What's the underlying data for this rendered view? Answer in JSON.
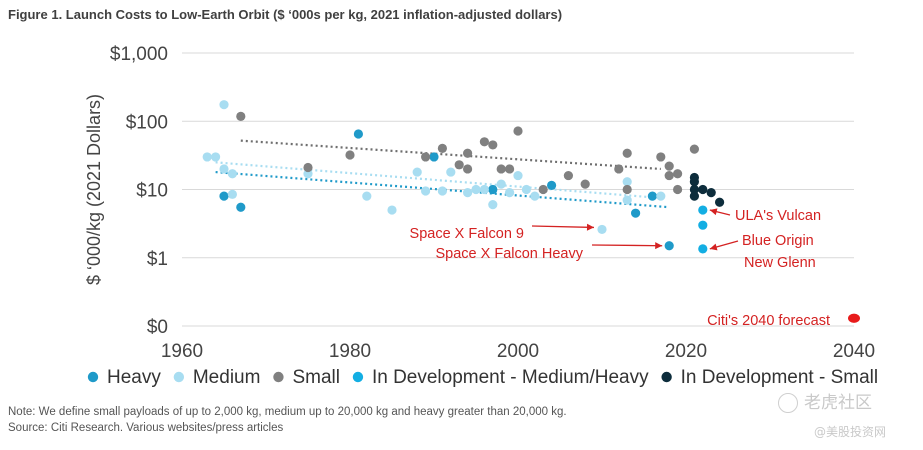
{
  "title": "Figure 1. Launch Costs to Low-Earth Orbit ($ ‘000s per kg, 2021 inflation-adjusted dollars)",
  "notes": {
    "line1": "Note: We define small payloads of up to 2,000 kg, medium up to 20,000 kg and heavy greater than 20,000 kg.",
    "line2": "Source: Citi Research. Various websites/press articles"
  },
  "watermark": {
    "line1": "老虎社区",
    "line2": "@美股投资网"
  },
  "chart_data": {
    "type": "scatter",
    "ylabel": "$ ‘000/kg (2021 Dollars)",
    "xlabel": "",
    "xlim": [
      1960,
      2040
    ],
    "ylim": [
      0.1,
      1000
    ],
    "yscale": "log",
    "x_ticks": [
      1960,
      1980,
      2000,
      2020,
      2040
    ],
    "y_ticks": [
      {
        "value": 1000,
        "label": "$1,000"
      },
      {
        "value": 100,
        "label": "$100"
      },
      {
        "value": 10,
        "label": "$10"
      },
      {
        "value": 1,
        "label": "$1"
      },
      {
        "value": 0.1,
        "label": "$0"
      }
    ],
    "grid": "horizontal",
    "legend_position": "bottom",
    "series": [
      {
        "name": "Heavy",
        "color": "#1f9ac9",
        "points": [
          [
            1965,
            8
          ],
          [
            1967,
            5.5
          ],
          [
            1981,
            65
          ],
          [
            1990,
            30
          ],
          [
            1997,
            10
          ],
          [
            2004,
            11.5
          ],
          [
            2014,
            4.5
          ],
          [
            2016,
            8
          ],
          [
            2018,
            1.5
          ]
        ]
      },
      {
        "name": "Medium",
        "color": "#a8ddf1",
        "points": [
          [
            1963,
            30
          ],
          [
            1964,
            30
          ],
          [
            1965,
            175
          ],
          [
            1965,
            20
          ],
          [
            1966,
            17
          ],
          [
            1966,
            8.5
          ],
          [
            1975,
            17
          ],
          [
            1982,
            8
          ],
          [
            1985,
            5
          ],
          [
            1988,
            18
          ],
          [
            1989,
            9.5
          ],
          [
            1991,
            9.5
          ],
          [
            1992,
            18
          ],
          [
            1994,
            9
          ],
          [
            1995,
            10
          ],
          [
            1996,
            10
          ],
          [
            1997,
            6
          ],
          [
            1998,
            12
          ],
          [
            1999,
            9
          ],
          [
            2000,
            16
          ],
          [
            2001,
            10
          ],
          [
            2002,
            8
          ],
          [
            2013,
            13
          ],
          [
            2013,
            7
          ],
          [
            2017,
            8
          ],
          [
            2010,
            2.6
          ]
        ]
      },
      {
        "name": "Small",
        "color": "#808080",
        "points": [
          [
            1967,
            118
          ],
          [
            1975,
            21
          ],
          [
            1980,
            32
          ],
          [
            1989,
            30
          ],
          [
            1991,
            40
          ],
          [
            1993,
            23
          ],
          [
            1994,
            34
          ],
          [
            1994,
            20
          ],
          [
            1996,
            50
          ],
          [
            1997,
            45
          ],
          [
            1998,
            20
          ],
          [
            1999,
            20
          ],
          [
            2000,
            72
          ],
          [
            2003,
            10
          ],
          [
            2006,
            16
          ],
          [
            2008,
            12
          ],
          [
            2012,
            20
          ],
          [
            2013,
            34
          ],
          [
            2013,
            10
          ],
          [
            2017,
            30
          ],
          [
            2018,
            22
          ],
          [
            2018,
            16
          ],
          [
            2019,
            17
          ],
          [
            2019,
            10
          ],
          [
            2021,
            39
          ]
        ]
      },
      {
        "name": "In Development - Medium/Heavy",
        "color": "#13aee3",
        "points": [
          [
            2022,
            5
          ],
          [
            2022,
            3
          ],
          [
            2022,
            1.35
          ]
        ]
      },
      {
        "name": "In Development - Small",
        "color": "#0d2d3c",
        "points": [
          [
            2021,
            15
          ],
          [
            2021,
            13
          ],
          [
            2021,
            10
          ],
          [
            2021,
            8
          ],
          [
            2022,
            10
          ],
          [
            2023,
            9
          ],
          [
            2024,
            6.5
          ]
        ]
      }
    ],
    "extra_points": [
      {
        "x": 2040,
        "y": 0.13,
        "color": "#e81b1b"
      }
    ],
    "trendlines": [
      {
        "series": "Small",
        "color": "#6e6e6e",
        "from": [
          1967,
          52
        ],
        "to": [
          2017,
          20
        ]
      },
      {
        "series": "Medium",
        "color": "#a8ddf1",
        "from": [
          1964,
          25
        ],
        "to": [
          2017,
          7.5
        ]
      },
      {
        "series": "Heavy",
        "color": "#1f9ac9",
        "from": [
          1964,
          18
        ],
        "to": [
          2018,
          5.5
        ]
      }
    ],
    "annotations": [
      {
        "text": "ULA's Vulcan",
        "color": "#d42222",
        "target": [
          2022,
          5
        ],
        "arrow": "from-right"
      },
      {
        "text": "Space X Falcon 9",
        "color": "#d42222",
        "target": [
          2010,
          2.6
        ],
        "arrow": "from-left"
      },
      {
        "text": "Blue Origin",
        "color": "#d42222",
        "target": [
          2022,
          1.35
        ],
        "arrow": "from-right"
      },
      {
        "text": "New Glenn",
        "color": "#d42222",
        "target": null,
        "arrow": "none"
      },
      {
        "text": "Space X Falcon Heavy",
        "color": "#d42222",
        "target": [
          2018,
          1.5
        ],
        "arrow": "from-left"
      },
      {
        "text": "Citi's 2040 forecast",
        "color": "#d42222",
        "target": null,
        "arrow": "none"
      }
    ]
  }
}
